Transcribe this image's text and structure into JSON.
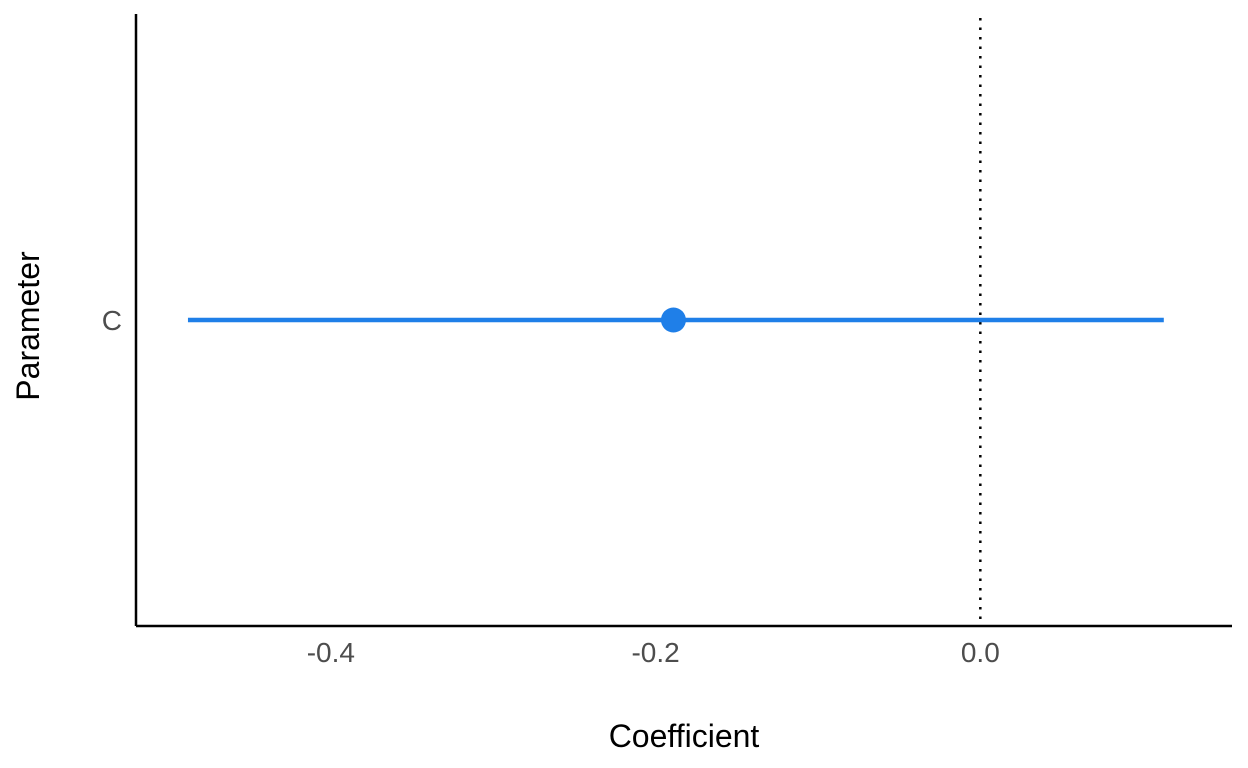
{
  "chart_data": {
    "type": "scatter",
    "title": "",
    "xlabel": "Coefficient",
    "ylabel": "Parameter",
    "xlim": [
      -0.52,
      0.155
    ],
    "x_ticks": [
      -0.4,
      -0.2,
      0.0
    ],
    "x_tick_labels": [
      "-0.4",
      "-0.2",
      "0.0"
    ],
    "categories": [
      "C"
    ],
    "reference_line": {
      "x": 0.0,
      "style": "dotted"
    },
    "grid": false,
    "series": [
      {
        "parameter": "C",
        "estimate": -0.189,
        "ci_low": -0.488,
        "ci_high": 0.113
      }
    ],
    "colors": {
      "point": "#1f7fe8",
      "axis": "#000000",
      "text": "#4d4d4d"
    }
  }
}
